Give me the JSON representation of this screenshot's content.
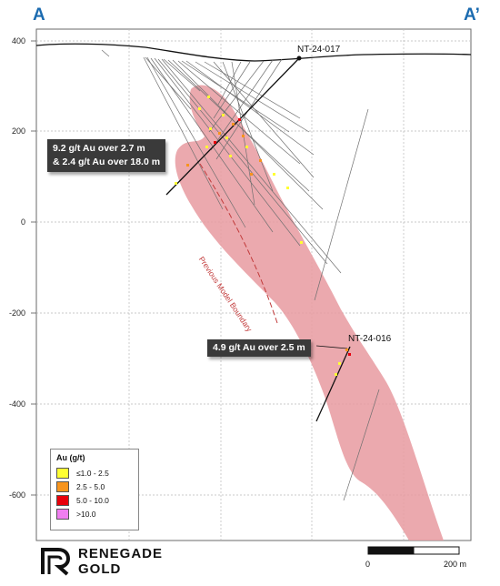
{
  "section": {
    "start_label": "A",
    "end_label": "A’"
  },
  "y_axis": {
    "ticks": [
      "400",
      "200",
      "0",
      "-200",
      "-400",
      "-600"
    ]
  },
  "drillholes": {
    "hole_1": "NT-24-017",
    "hole_2": "NT-24-016"
  },
  "callouts": {
    "upper_line1": "9.2 g/t Au over 2.7 m",
    "upper_line2": "& 2.4 g/t Au over 18.0 m",
    "lower": "4.9 g/t Au over 2.5 m"
  },
  "boundary_label": "Previous Model Boundary",
  "legend": {
    "title": "Au (g/t)",
    "items": [
      {
        "label": "≤1.0 - 2.5",
        "color": "#ffff33"
      },
      {
        "label": "2.5 - 5.0",
        "color": "#f7941d"
      },
      {
        "label": "5.0 - 10.0",
        "color": "#e8000b"
      },
      {
        "label": ">10.0",
        "color": "#f07ef0"
      }
    ]
  },
  "scale_bar": {
    "start": "0",
    "end": "200 m"
  },
  "logo": {
    "line1": "RENEGADE",
    "line2": "GOLD"
  },
  "colors": {
    "zone_fill": "#e79aa0",
    "section_label": "#1b6bb0",
    "callout_bg": "#3a3a3a"
  }
}
